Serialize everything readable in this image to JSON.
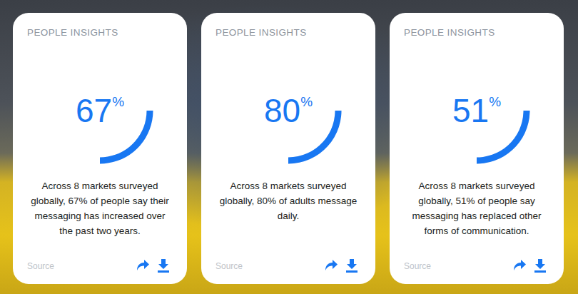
{
  "chart_data": [
    {
      "type": "donut",
      "title": "PEOPLE INSIGHTS",
      "values": [
        67
      ],
      "value_labels": [
        "67%"
      ],
      "data_labels": true,
      "ylim": [
        0,
        100
      ],
      "color": "#1877f2",
      "subtitle": "Across 8 markets surveyed globally, 67% of people say their messaging has increased over the past two years.",
      "annotations": [
        "Source"
      ]
    },
    {
      "type": "donut",
      "title": "PEOPLE INSIGHTS",
      "values": [
        80
      ],
      "value_labels": [
        "80%"
      ],
      "data_labels": true,
      "ylim": [
        0,
        100
      ],
      "color": "#1877f2",
      "subtitle": "Across 8 markets surveyed globally, 80% of adults message daily.",
      "annotations": [
        "Source"
      ]
    },
    {
      "type": "donut",
      "title": "PEOPLE INSIGHTS",
      "values": [
        51
      ],
      "value_labels": [
        "51%"
      ],
      "data_labels": true,
      "ylim": [
        0,
        100
      ],
      "color": "#1877f2",
      "subtitle": "Across 8 markets surveyed globally, 51% of people say messaging has replaced other forms of communication.",
      "annotations": [
        "Source"
      ]
    }
  ]
}
